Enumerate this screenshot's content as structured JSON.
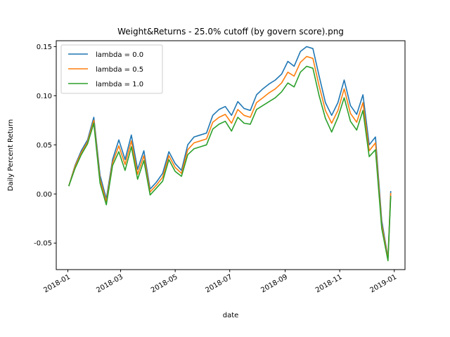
{
  "chart_data": {
    "type": "line",
    "title": "Weight&Returns - 25.0% cutoff (by govern score).png",
    "xlabel": "date",
    "ylabel": "Daily Percent Return",
    "x_ticks": [
      "2018-01",
      "2018-03",
      "2018-05",
      "2018-07",
      "2018-09",
      "2018-11",
      "2019-01"
    ],
    "y_ticks": [
      "-0.05",
      "0.00",
      "0.05",
      "0.10",
      "0.15"
    ],
    "xlim": [
      "2017-12-19",
      "2019-01-13"
    ],
    "ylim": [
      -0.077,
      0.156
    ],
    "grid": false,
    "legend_position": "upper-left",
    "x": [
      "2018-01-02",
      "2018-01-09",
      "2018-01-16",
      "2018-01-23",
      "2018-01-30",
      "2018-02-06",
      "2018-02-13",
      "2018-02-20",
      "2018-02-27",
      "2018-03-06",
      "2018-03-13",
      "2018-03-20",
      "2018-03-27",
      "2018-04-03",
      "2018-04-10",
      "2018-04-17",
      "2018-04-24",
      "2018-05-01",
      "2018-05-08",
      "2018-05-15",
      "2018-05-22",
      "2018-05-29",
      "2018-06-05",
      "2018-06-12",
      "2018-06-19",
      "2018-06-26",
      "2018-07-03",
      "2018-07-10",
      "2018-07-17",
      "2018-07-24",
      "2018-07-31",
      "2018-08-07",
      "2018-08-14",
      "2018-08-21",
      "2018-08-28",
      "2018-09-04",
      "2018-09-11",
      "2018-09-18",
      "2018-09-25",
      "2018-10-02",
      "2018-10-09",
      "2018-10-16",
      "2018-10-23",
      "2018-10-30",
      "2018-11-06",
      "2018-11-13",
      "2018-11-20",
      "2018-11-27",
      "2018-12-04",
      "2018-12-11",
      "2018-12-18",
      "2018-12-25",
      "2018-12-28"
    ],
    "series": [
      {
        "name": "lambda = 0.0",
        "color": "#1f77b4",
        "values": [
          0.008,
          0.029,
          0.044,
          0.055,
          0.078,
          0.019,
          -0.005,
          0.035,
          0.055,
          0.035,
          0.06,
          0.025,
          0.044,
          0.005,
          0.012,
          0.021,
          0.043,
          0.031,
          0.024,
          0.05,
          0.058,
          0.06,
          0.062,
          0.08,
          0.086,
          0.089,
          0.08,
          0.094,
          0.087,
          0.085,
          0.101,
          0.107,
          0.112,
          0.116,
          0.122,
          0.135,
          0.13,
          0.145,
          0.15,
          0.148,
          0.12,
          0.093,
          0.08,
          0.093,
          0.116,
          0.09,
          0.081,
          0.101,
          0.05,
          0.058,
          -0.027,
          -0.065,
          0.003
        ]
      },
      {
        "name": "lambda = 0.5",
        "color": "#ff7f0e",
        "values": [
          0.008,
          0.028,
          0.042,
          0.053,
          0.075,
          0.015,
          -0.008,
          0.032,
          0.049,
          0.03,
          0.054,
          0.02,
          0.039,
          0.002,
          0.009,
          0.017,
          0.039,
          0.027,
          0.021,
          0.045,
          0.052,
          0.054,
          0.056,
          0.073,
          0.078,
          0.081,
          0.072,
          0.086,
          0.08,
          0.078,
          0.093,
          0.098,
          0.103,
          0.107,
          0.113,
          0.124,
          0.12,
          0.134,
          0.14,
          0.138,
          0.11,
          0.085,
          0.072,
          0.085,
          0.107,
          0.082,
          0.073,
          0.093,
          0.044,
          0.052,
          -0.031,
          -0.066,
          0.001
        ]
      },
      {
        "name": "lambda = 1.0",
        "color": "#2ca02c",
        "values": [
          0.008,
          0.026,
          0.04,
          0.051,
          0.072,
          0.011,
          -0.011,
          0.029,
          0.043,
          0.024,
          0.048,
          0.015,
          0.034,
          -0.001,
          0.006,
          0.013,
          0.035,
          0.023,
          0.018,
          0.04,
          0.046,
          0.048,
          0.05,
          0.066,
          0.071,
          0.074,
          0.064,
          0.078,
          0.072,
          0.071,
          0.086,
          0.09,
          0.094,
          0.098,
          0.104,
          0.113,
          0.109,
          0.124,
          0.13,
          0.128,
          0.1,
          0.077,
          0.063,
          0.078,
          0.098,
          0.074,
          0.065,
          0.085,
          0.038,
          0.045,
          -0.035,
          -0.068,
          -0.002
        ]
      }
    ]
  }
}
